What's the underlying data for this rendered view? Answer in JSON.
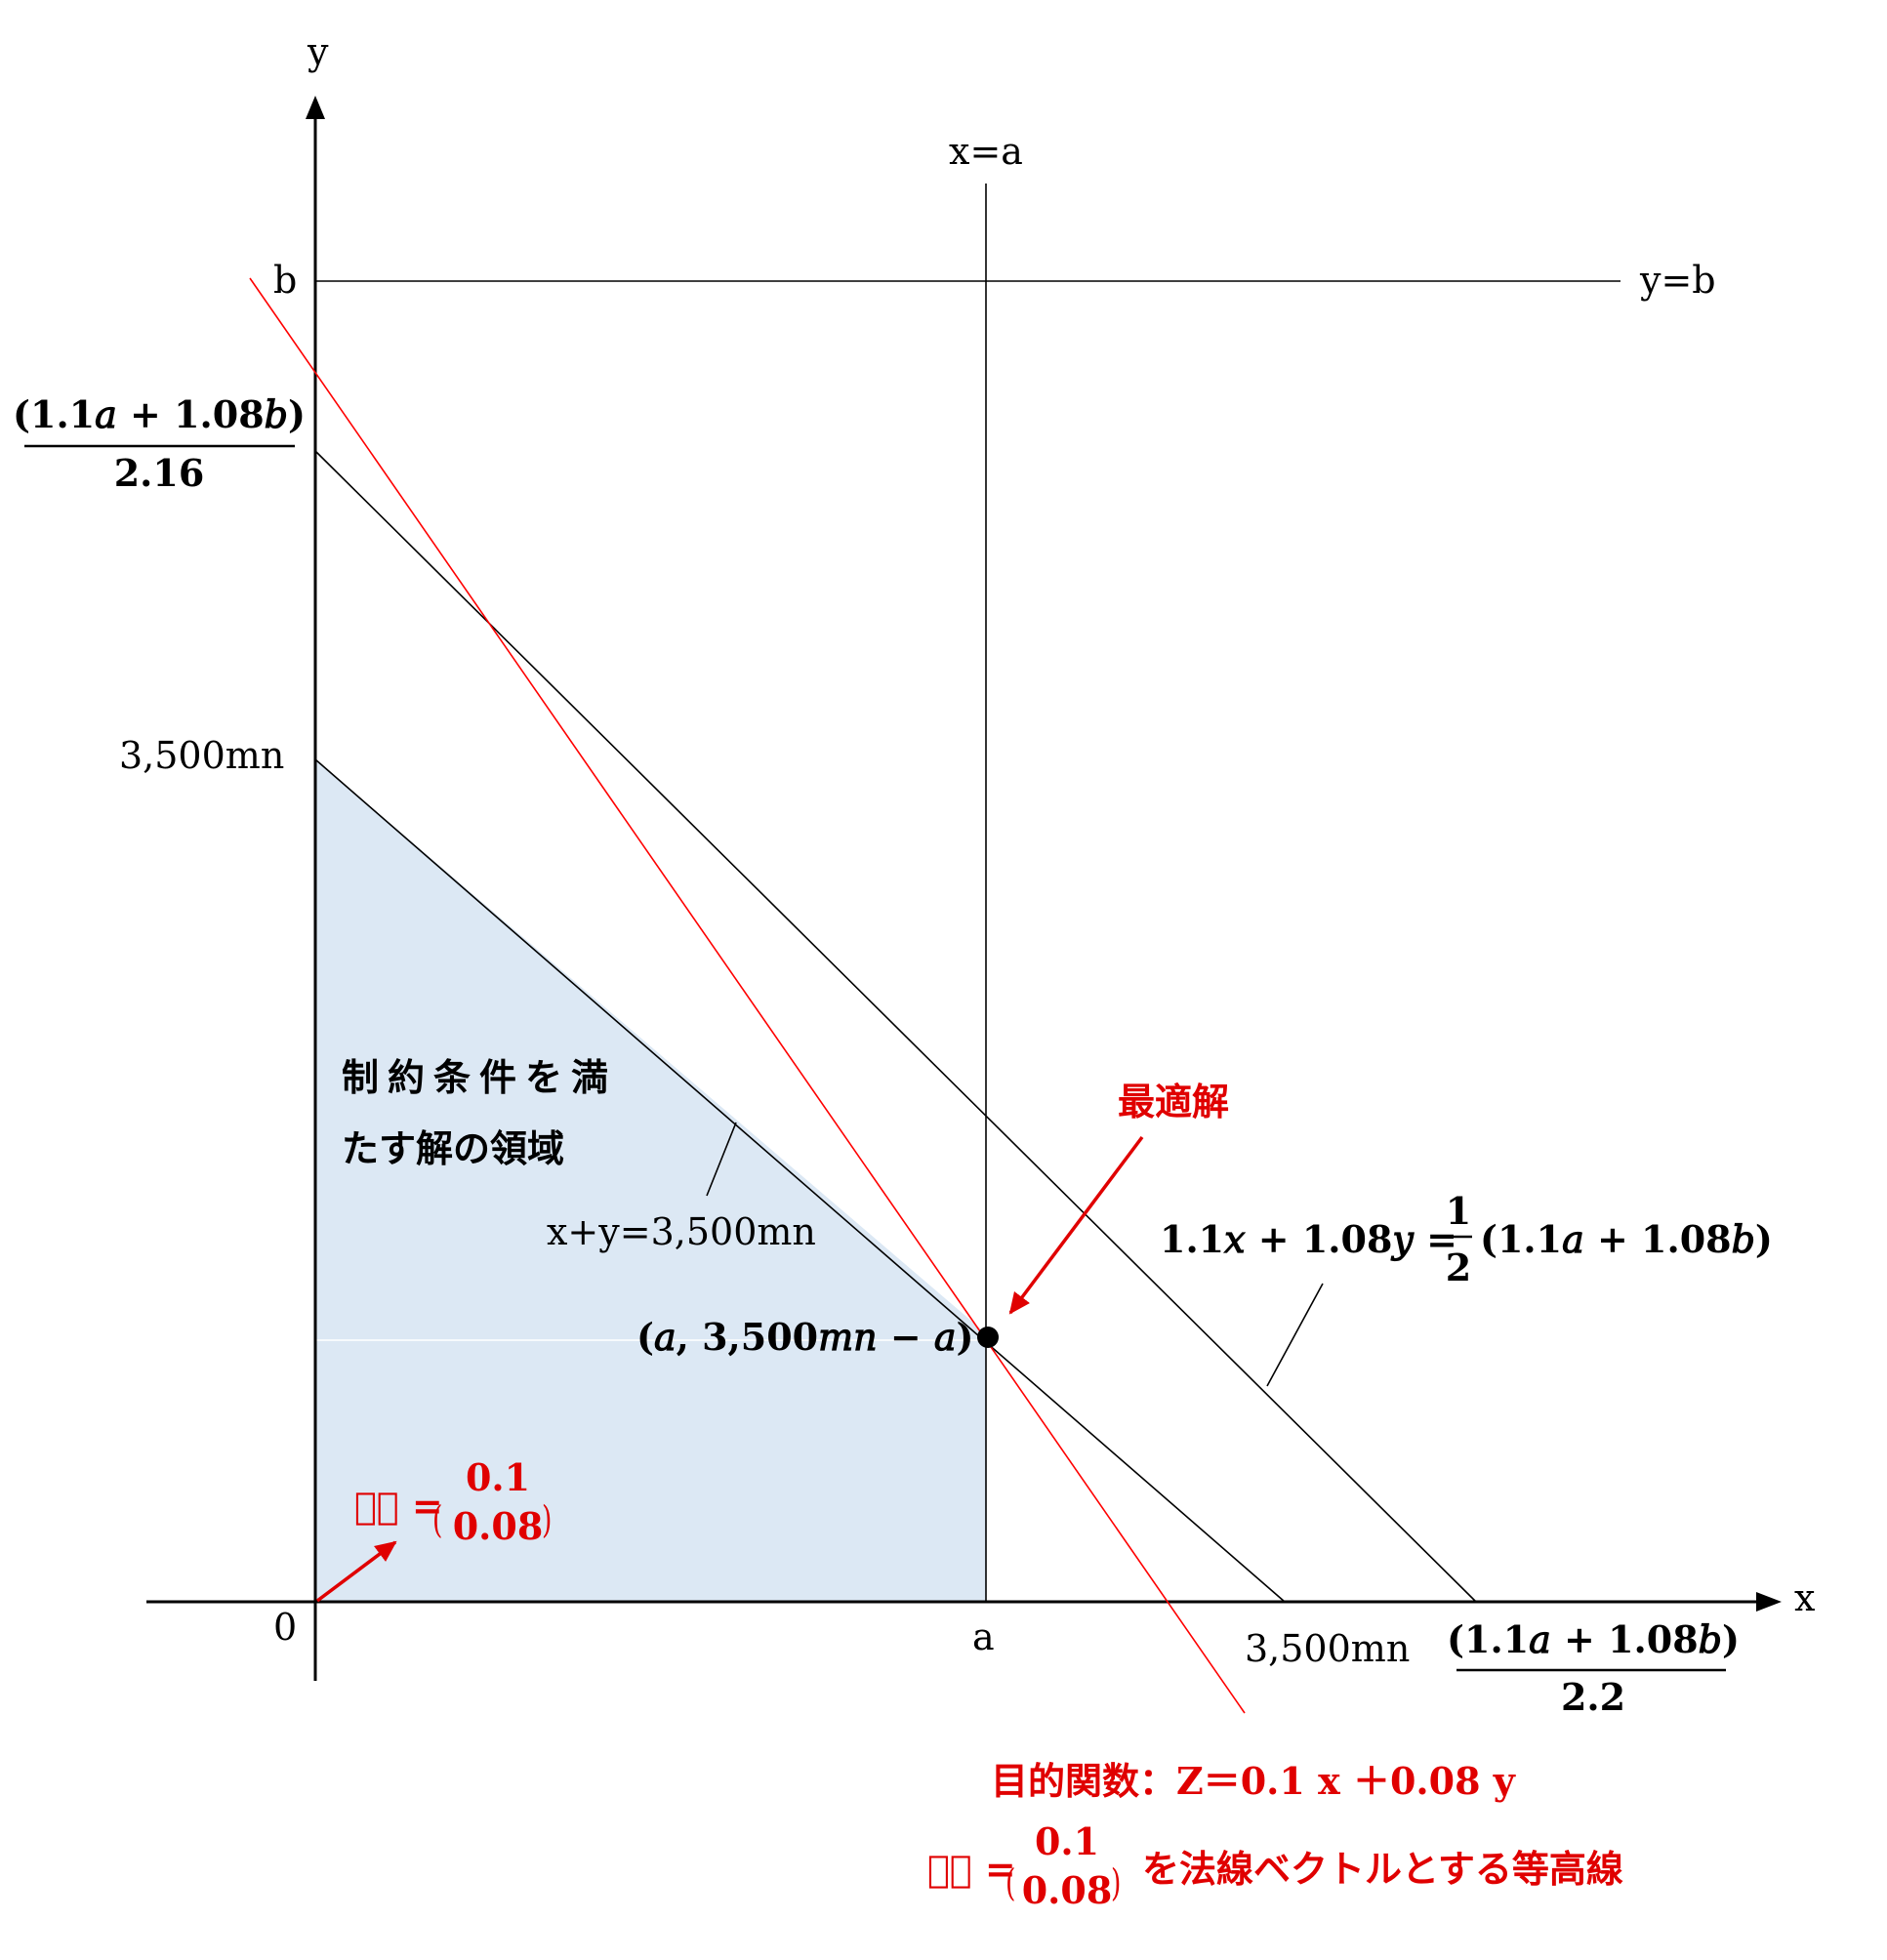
{
  "axes": {
    "x_label": "x",
    "y_label": "y",
    "origin_label": "0"
  },
  "ticks": {
    "x_a": "a",
    "x_3500": "3,500mn",
    "x_frac_num": "(1.1𝑎 + 1.08𝑏)",
    "x_frac_den": "2.2",
    "y_b": "b",
    "y_3500": "3,500mn",
    "y_frac_num": "(1.1𝑎 + 1.08𝑏)",
    "y_frac_den": "2.16"
  },
  "lines": {
    "vertical_label": "x=a",
    "horizontal_label": "y=b",
    "constraint_label": "x+y=3,500mn",
    "budget_left": "1.1𝑥 + 1.08𝑦 =",
    "budget_frac_num": "1",
    "budget_frac_den": "2",
    "budget_right": "(1.1𝑎 + 1.08𝑏)"
  },
  "region": {
    "line1": "制約条件を満",
    "line2": "たす解の領域"
  },
  "point": {
    "label": "(𝑎, 3,500𝑚𝑛 − 𝑎)"
  },
  "optimum": {
    "label": "最適解"
  },
  "vector": {
    "lhs": "𝑝⃗ =",
    "top": "0.1",
    "bottom": "0.08"
  },
  "objective": {
    "line1": "目的関数：Z＝0.1 x ＋0.08 y",
    "lhs": "𝑝⃗ =",
    "top": "0.1",
    "bottom": "0.08",
    "line2_rest": "を法線ベクトルとする等高線"
  },
  "colors": {
    "axis": "#000000",
    "region_fill": "#dce8f4",
    "objective_line": "#ff0000",
    "annotation_red": "#e00000"
  }
}
